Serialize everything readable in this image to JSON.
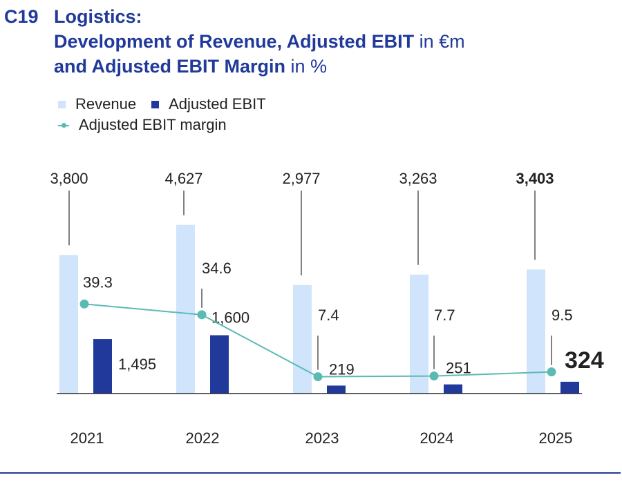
{
  "header": {
    "code": "C19",
    "line1": "Logistics:",
    "line2_bold": "Development of Revenue, Adjusted EBIT",
    "line2_unit": "in €m",
    "line3_bold": "and Adjusted EBIT Margin",
    "line3_unit": "in %"
  },
  "legend": {
    "revenue": "Revenue",
    "ebit": "Adjusted EBIT",
    "margin": "Adjusted EBIT margin"
  },
  "colors": {
    "title": "#20399b",
    "revenue": "#d0e4fb",
    "ebit": "#20399b",
    "margin": "#5bbab3",
    "axis": "#2b2b2b"
  },
  "chart_data": {
    "type": "bar",
    "categories": [
      "2021",
      "2022",
      "2023",
      "2024",
      "2025"
    ],
    "series": [
      {
        "name": "Revenue",
        "values": [
          3800,
          4627,
          2977,
          3263,
          3403
        ],
        "labels": [
          "3,800",
          "4,627",
          "2,977",
          "3,263",
          "3,403"
        ]
      },
      {
        "name": "Adjusted EBIT",
        "values": [
          1495,
          1600,
          219,
          251,
          324
        ],
        "labels": [
          "1,495",
          "1,600",
          "219",
          "251",
          "324"
        ]
      },
      {
        "name": "Adjusted EBIT margin",
        "type": "line",
        "values": [
          39.3,
          34.6,
          7.4,
          7.7,
          9.5
        ],
        "labels": [
          "39.3",
          "34.6",
          "7.4",
          "7.7",
          "9.5"
        ]
      }
    ],
    "highlight_category": "2025",
    "grid": false
  }
}
